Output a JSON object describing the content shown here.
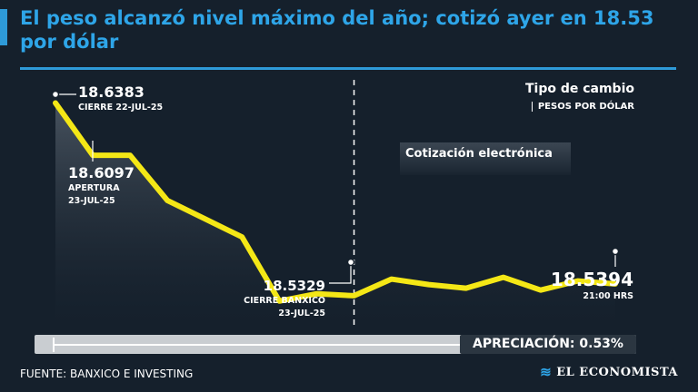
{
  "title": "El peso alcanzó nivel máximo del año; cotizó ayer en 18.53 por dólar",
  "legend": {
    "title": "Tipo de cambio",
    "subtitle": "PESOS POR DÓLAR"
  },
  "series_label": "Cotización electrónica",
  "appreciation": "APRECIACIÓN: 0.53%",
  "source": "FUENTE: BANXICO E INVESTING",
  "brand": {
    "name": "EL ECONOMISTA",
    "mark_icon": "wavy-lines-icon"
  },
  "colors": {
    "line": "#f4e716",
    "accent": "#2ea5e8",
    "background": "#15202c"
  },
  "chart_data": {
    "type": "line",
    "title": "Tipo de cambio",
    "ylabel": "Pesos por dólar",
    "ylim": [
      18.515,
      18.645
    ],
    "values": [
      18.6383,
      18.6097,
      18.6097,
      18.585,
      18.575,
      18.565,
      18.53,
      18.534,
      18.5329,
      18.542,
      18.539,
      18.537,
      18.543,
      18.536,
      18.541,
      18.5394
    ],
    "annotations": [
      {
        "index": 0,
        "value": "18.6383",
        "lines": [
          "CIERRE 22-JUL-25"
        ]
      },
      {
        "index": 1,
        "value": "18.6097",
        "lines": [
          "APERTURA",
          "23-JUL-25"
        ]
      },
      {
        "index": 8,
        "value": "18.5329",
        "lines": [
          "CIERRE BANXICO",
          "23-JUL-25"
        ]
      },
      {
        "index": 15,
        "value": "18.5394",
        "lines": [
          "21:00 HRS"
        ]
      }
    ],
    "divider_index": 8
  }
}
